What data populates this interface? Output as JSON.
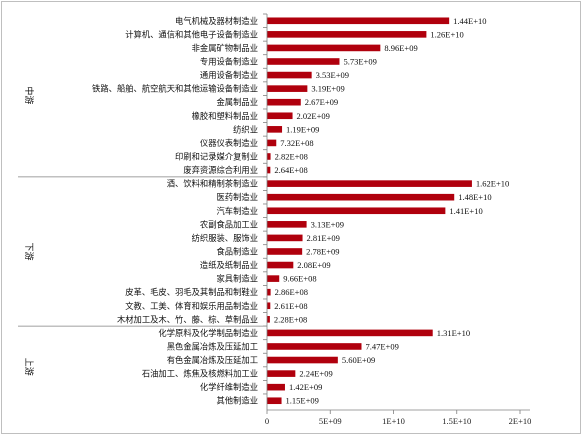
{
  "chart_data": {
    "type": "bar",
    "orientation": "horizontal",
    "title": "",
    "xlabel": "",
    "ylabel": "",
    "xlim": [
      0,
      20000000000
    ],
    "x_ticks": [
      "0",
      "5E+09",
      "1E+10",
      "1.5E+10",
      "2E+10"
    ],
    "x_tick_values": [
      0,
      5000000000,
      10000000000,
      15000000000,
      20000000000
    ],
    "grid": false,
    "bar_color": "#b0000d",
    "groups": [
      {
        "name": "中游",
        "categories": [
          {
            "label": "电气机械及器材制造业",
            "value": 14400000000,
            "value_label": "1.44E+10"
          },
          {
            "label": "计算机、通信和其他电子设备制造业",
            "value": 12600000000,
            "value_label": "1.26E+10"
          },
          {
            "label": "非金属矿物制品业",
            "value": 8960000000,
            "value_label": "8.96E+09"
          },
          {
            "label": "专用设备制造业",
            "value": 5730000000,
            "value_label": "5.73E+09"
          },
          {
            "label": "通用设备制造业",
            "value": 3530000000,
            "value_label": "3.53E+09"
          },
          {
            "label": "铁路、船舶、航空航天和其他运输设备制造业",
            "value": 3190000000,
            "value_label": "3.19E+09"
          },
          {
            "label": "金属制品业",
            "value": 2670000000,
            "value_label": "2.67E+09"
          },
          {
            "label": "橡胶和塑料制品业",
            "value": 2020000000,
            "value_label": "2.02E+09"
          },
          {
            "label": "纺织业",
            "value": 1190000000,
            "value_label": "1.19E+09"
          },
          {
            "label": "仪器仪表制造业",
            "value": 732000000,
            "value_label": "7.32E+08"
          },
          {
            "label": "印刷和记录媒介复制业",
            "value": 282000000,
            "value_label": "2.82E+08"
          },
          {
            "label": "废弃资源综合利用业",
            "value": 264000000,
            "value_label": "2.64E+08"
          }
        ]
      },
      {
        "name": "下游",
        "categories": [
          {
            "label": "酒、饮料和精制茶制造业",
            "value": 16200000000,
            "value_label": "1.62E+10"
          },
          {
            "label": "医药制造业",
            "value": 14800000000,
            "value_label": "1.48E+10"
          },
          {
            "label": "汽车制造业",
            "value": 14100000000,
            "value_label": "1.41E+10"
          },
          {
            "label": "农副食品加工业",
            "value": 3130000000,
            "value_label": "3.13E+09"
          },
          {
            "label": "纺织服装、服饰业",
            "value": 2810000000,
            "value_label": "2.81E+09"
          },
          {
            "label": "食品制造业",
            "value": 2780000000,
            "value_label": "2.78E+09"
          },
          {
            "label": "造纸及纸制品业",
            "value": 2080000000,
            "value_label": "2.08E+09"
          },
          {
            "label": "家具制造业",
            "value": 966000000,
            "value_label": "9.66E+08"
          },
          {
            "label": "皮革、毛皮、羽毛及其制品和制鞋业",
            "value": 286000000,
            "value_label": "2.86E+08"
          },
          {
            "label": "文教、工美、体育和娱乐用品制造业",
            "value": 261000000,
            "value_label": "2.61E+08"
          },
          {
            "label": "木材加工及木、竹、藤、棕、草制品业",
            "value": 228000000,
            "value_label": "2.28E+08"
          }
        ]
      },
      {
        "name": "上游",
        "categories": [
          {
            "label": "化学原料及化学制品制造业",
            "value": 13100000000,
            "value_label": "1.31E+10"
          },
          {
            "label": "黑色金属冶炼及压延加工",
            "value": 7470000000,
            "value_label": "7.47E+09"
          },
          {
            "label": "有色金属冶炼及压延加工",
            "value": 5600000000,
            "value_label": "5.60E+09"
          },
          {
            "label": "石油加工、炼焦及核燃料加工业",
            "value": 2240000000,
            "value_label": "2.24E+09"
          },
          {
            "label": "化学纤维制造业",
            "value": 1420000000,
            "value_label": "1.42E+09"
          },
          {
            "label": "其他制造业",
            "value": 1150000000,
            "value_label": "1.15E+09"
          }
        ]
      }
    ]
  }
}
